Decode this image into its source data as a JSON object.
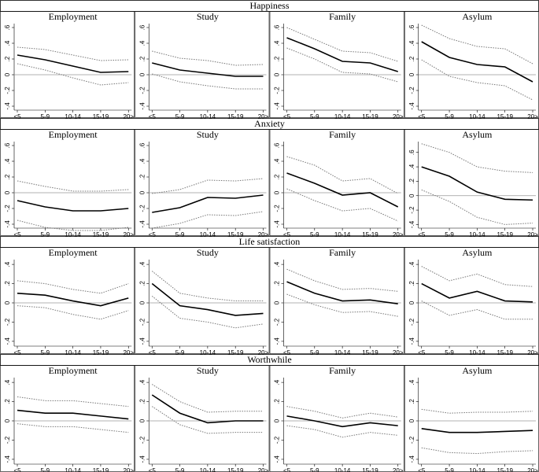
{
  "row_titles": [
    "Happiness",
    "Anxiety",
    "Life satisfaction",
    "Worthwhile"
  ],
  "chart_data": [
    {
      "type": "line",
      "title": "Employment",
      "categories": [
        "<5",
        "5-9",
        "10-14",
        "15-19",
        "20>"
      ],
      "ylim": [
        -0.45,
        0.65
      ],
      "yticks": [
        {
          "value": 0.6,
          "label": ".6"
        },
        {
          "value": 0.4,
          "label": ".4"
        },
        {
          "value": 0.2,
          "label": ".2"
        },
        0,
        {
          "value": -0.2,
          "label": "-.2"
        },
        {
          "value": -0.4,
          "label": "-.4"
        }
      ],
      "series": [
        {
          "color": "#000000",
          "dashed": false,
          "values": [
            0.25,
            0.19,
            0.11,
            0.03,
            0.04
          ]
        },
        {
          "color": "#777777",
          "dashed": true,
          "values": [
            0.35,
            0.32,
            0.25,
            0.18,
            0.19
          ]
        },
        {
          "color": "#777777",
          "dashed": true,
          "values": [
            0.14,
            0.06,
            -0.04,
            -0.13,
            -0.1
          ]
        }
      ]
    },
    {
      "type": "line",
      "title": "Study",
      "categories": [
        "<5",
        "5-9",
        "10-14",
        "15-19",
        "20>"
      ],
      "ylim": [
        -0.45,
        0.65
      ],
      "yticks": [
        {
          "value": 0.6,
          "label": ".6"
        },
        {
          "value": 0.4,
          "label": ".4"
        },
        {
          "value": 0.2,
          "label": ".2"
        },
        0,
        {
          "value": -0.2,
          "label": "-.2"
        },
        {
          "value": -0.4,
          "label": "-.4"
        }
      ],
      "series": [
        {
          "color": "#000000",
          "dashed": false,
          "values": [
            0.15,
            0.06,
            0.02,
            -0.02,
            -0.02
          ]
        },
        {
          "color": "#777777",
          "dashed": true,
          "values": [
            0.3,
            0.21,
            0.18,
            0.12,
            0.13
          ]
        },
        {
          "color": "#777777",
          "dashed": true,
          "values": [
            0.01,
            -0.09,
            -0.14,
            -0.18,
            -0.18
          ]
        }
      ]
    },
    {
      "type": "line",
      "title": "Family",
      "categories": [
        "<5",
        "5-9",
        "10-14",
        "15-19",
        "20>"
      ],
      "ylim": [
        -0.45,
        0.65
      ],
      "yticks": [
        {
          "value": 0.6,
          "label": ".6"
        },
        {
          "value": 0.4,
          "label": ".4"
        },
        {
          "value": 0.2,
          "label": ".2"
        },
        0,
        {
          "value": -0.2,
          "label": "-.2"
        },
        {
          "value": -0.4,
          "label": "-.4"
        }
      ],
      "series": [
        {
          "color": "#000000",
          "dashed": false,
          "values": [
            0.47,
            0.33,
            0.17,
            0.15,
            0.04
          ]
        },
        {
          "color": "#777777",
          "dashed": true,
          "values": [
            0.6,
            0.45,
            0.3,
            0.28,
            0.17
          ]
        },
        {
          "color": "#777777",
          "dashed": true,
          "values": [
            0.34,
            0.2,
            0.03,
            0.01,
            -0.09
          ]
        }
      ]
    },
    {
      "type": "line",
      "title": "Asylum",
      "categories": [
        "<5",
        "5-9",
        "10-14",
        "15-19",
        "20>"
      ],
      "ylim": [
        -0.45,
        0.65
      ],
      "yticks": [
        {
          "value": 0.6,
          "label": ".6"
        },
        {
          "value": 0.4,
          "label": ".4"
        },
        {
          "value": 0.2,
          "label": ".2"
        },
        0,
        {
          "value": -0.2,
          "label": "-.2"
        },
        {
          "value": -0.4,
          "label": "-.4"
        }
      ],
      "series": [
        {
          "color": "#000000",
          "dashed": false,
          "values": [
            0.42,
            0.22,
            0.13,
            0.1,
            -0.09
          ]
        },
        {
          "color": "#777777",
          "dashed": true,
          "values": [
            0.63,
            0.46,
            0.36,
            0.33,
            0.14
          ]
        },
        {
          "color": "#777777",
          "dashed": true,
          "values": [
            0.19,
            -0.02,
            -0.1,
            -0.14,
            -0.32
          ]
        }
      ]
    },
    {
      "type": "line",
      "title": "Employment",
      "categories": [
        "<5",
        "5-9",
        "10-14",
        "15-19",
        "20>"
      ],
      "ylim": [
        -0.45,
        0.65
      ],
      "yticks": [
        {
          "value": 0.6,
          "label": ".6"
        },
        {
          "value": 0.4,
          "label": ".4"
        },
        {
          "value": 0.2,
          "label": ".2"
        },
        0,
        {
          "value": -0.2,
          "label": "-.2"
        },
        {
          "value": -0.4,
          "label": "-.4"
        }
      ],
      "series": [
        {
          "color": "#000000",
          "dashed": false,
          "values": [
            -0.1,
            -0.18,
            -0.23,
            -0.23,
            -0.2
          ]
        },
        {
          "color": "#777777",
          "dashed": true,
          "values": [
            0.15,
            0.08,
            0.02,
            0.02,
            0.04
          ]
        },
        {
          "color": "#777777",
          "dashed": true,
          "values": [
            -0.35,
            -0.44,
            -0.48,
            -0.48,
            -0.44
          ]
        }
      ]
    },
    {
      "type": "line",
      "title": "Study",
      "categories": [
        "<5",
        "5-9",
        "10-14",
        "15-19",
        "20>"
      ],
      "ylim": [
        -0.45,
        0.65
      ],
      "yticks": [
        {
          "value": 0.6,
          "label": ".6"
        },
        {
          "value": 0.4,
          "label": ".4"
        },
        {
          "value": 0.2,
          "label": ".2"
        },
        0,
        {
          "value": -0.2,
          "label": "-.2"
        },
        {
          "value": -0.4,
          "label": "-.4"
        }
      ],
      "series": [
        {
          "color": "#000000",
          "dashed": false,
          "values": [
            -0.25,
            -0.19,
            -0.06,
            -0.07,
            -0.03
          ]
        },
        {
          "color": "#777777",
          "dashed": true,
          "values": [
            -0.01,
            0.04,
            0.16,
            0.15,
            0.18
          ]
        },
        {
          "color": "#777777",
          "dashed": true,
          "values": [
            -0.45,
            -0.39,
            -0.28,
            -0.29,
            -0.24
          ]
        }
      ]
    },
    {
      "type": "line",
      "title": "Family",
      "categories": [
        "<5",
        "5-9",
        "10-14",
        "15-19",
        "20>"
      ],
      "ylim": [
        -0.45,
        0.65
      ],
      "yticks": [
        {
          "value": 0.6,
          "label": ".6"
        },
        {
          "value": 0.4,
          "label": ".4"
        },
        {
          "value": 0.2,
          "label": ".2"
        },
        0,
        {
          "value": -0.2,
          "label": "-.2"
        },
        {
          "value": -0.4,
          "label": "-.4"
        }
      ],
      "series": [
        {
          "color": "#000000",
          "dashed": false,
          "values": [
            0.25,
            0.12,
            -0.03,
            0.0,
            -0.18
          ]
        },
        {
          "color": "#777777",
          "dashed": true,
          "values": [
            0.46,
            0.35,
            0.15,
            0.18,
            -0.01
          ]
        },
        {
          "color": "#777777",
          "dashed": true,
          "values": [
            0.05,
            -0.1,
            -0.23,
            -0.2,
            -0.36
          ]
        }
      ]
    },
    {
      "type": "line",
      "title": "Asylum",
      "categories": [
        "<5",
        "5-9",
        "10-14",
        "15-19",
        "20>"
      ],
      "ylim": [
        -0.45,
        0.75
      ],
      "yticks": [
        {
          "value": 0.6,
          "label": ".6"
        },
        {
          "value": 0.4,
          "label": ".4"
        },
        {
          "value": 0.2,
          "label": ".2"
        },
        0,
        {
          "value": -0.2,
          "label": "-.2"
        },
        {
          "value": -0.4,
          "label": "-.4"
        }
      ],
      "series": [
        {
          "color": "#000000",
          "dashed": false,
          "values": [
            0.4,
            0.27,
            0.05,
            -0.05,
            -0.06
          ]
        },
        {
          "color": "#777777",
          "dashed": true,
          "values": [
            0.72,
            0.6,
            0.4,
            0.34,
            0.32
          ]
        },
        {
          "color": "#777777",
          "dashed": true,
          "values": [
            0.08,
            -0.08,
            -0.3,
            -0.4,
            -0.38
          ]
        }
      ]
    },
    {
      "type": "line",
      "title": "Employment",
      "categories": [
        "<5",
        "5-9",
        "10-14",
        "15-19",
        "20>"
      ],
      "ylim": [
        -0.45,
        0.45
      ],
      "yticks": [
        {
          "value": 0.4,
          "label": ".4"
        },
        {
          "value": 0.2,
          "label": ".2"
        },
        0,
        {
          "value": -0.2,
          "label": "-.2"
        },
        {
          "value": -0.4,
          "label": "-.4"
        }
      ],
      "series": [
        {
          "color": "#000000",
          "dashed": false,
          "values": [
            0.1,
            0.08,
            0.02,
            -0.03,
            0.05
          ]
        },
        {
          "color": "#777777",
          "dashed": true,
          "values": [
            0.23,
            0.2,
            0.14,
            0.1,
            0.2
          ]
        },
        {
          "color": "#777777",
          "dashed": true,
          "values": [
            -0.03,
            -0.05,
            -0.12,
            -0.17,
            -0.08
          ]
        }
      ]
    },
    {
      "type": "line",
      "title": "Study",
      "categories": [
        "<5",
        "5-9",
        "10-14",
        "15-19",
        "20>"
      ],
      "ylim": [
        -0.45,
        0.45
      ],
      "yticks": [
        {
          "value": 0.4,
          "label": ".4"
        },
        {
          "value": 0.2,
          "label": ".2"
        },
        0,
        {
          "value": -0.2,
          "label": "-.2"
        },
        {
          "value": -0.4,
          "label": "-.4"
        }
      ],
      "series": [
        {
          "color": "#000000",
          "dashed": false,
          "values": [
            0.2,
            -0.03,
            -0.07,
            -0.13,
            -0.11
          ]
        },
        {
          "color": "#777777",
          "dashed": true,
          "values": [
            0.33,
            0.1,
            0.05,
            0.02,
            0.02
          ]
        },
        {
          "color": "#777777",
          "dashed": true,
          "values": [
            0.07,
            -0.16,
            -0.2,
            -0.26,
            -0.22
          ]
        }
      ]
    },
    {
      "type": "line",
      "title": "Family",
      "categories": [
        "<5",
        "5-9",
        "10-14",
        "15-19",
        "20>"
      ],
      "ylim": [
        -0.45,
        0.45
      ],
      "yticks": [
        {
          "value": 0.4,
          "label": ".4"
        },
        {
          "value": 0.2,
          "label": ".2"
        },
        0,
        {
          "value": -0.2,
          "label": "-.2"
        },
        {
          "value": -0.4,
          "label": "-.4"
        }
      ],
      "series": [
        {
          "color": "#000000",
          "dashed": false,
          "values": [
            0.22,
            0.1,
            0.02,
            0.03,
            -0.01
          ]
        },
        {
          "color": "#777777",
          "dashed": true,
          "values": [
            0.35,
            0.23,
            0.14,
            0.15,
            0.12
          ]
        },
        {
          "color": "#777777",
          "dashed": true,
          "values": [
            0.09,
            -0.02,
            -0.1,
            -0.09,
            -0.14
          ]
        }
      ]
    },
    {
      "type": "line",
      "title": "Asylum",
      "categories": [
        "<5",
        "5-9",
        "10-14",
        "15-19",
        "20>"
      ],
      "ylim": [
        -0.45,
        0.45
      ],
      "yticks": [
        {
          "value": 0.4,
          "label": ".4"
        },
        {
          "value": 0.2,
          "label": ".2"
        },
        0,
        {
          "value": -0.2,
          "label": "-.2"
        },
        {
          "value": -0.4,
          "label": "-.4"
        }
      ],
      "series": [
        {
          "color": "#000000",
          "dashed": false,
          "values": [
            0.2,
            0.05,
            0.12,
            0.02,
            0.01
          ]
        },
        {
          "color": "#777777",
          "dashed": true,
          "values": [
            0.38,
            0.23,
            0.3,
            0.19,
            0.17
          ]
        },
        {
          "color": "#777777",
          "dashed": true,
          "values": [
            0.02,
            -0.13,
            -0.07,
            -0.17,
            -0.17
          ]
        }
      ]
    },
    {
      "type": "line",
      "title": "Employment",
      "categories": [
        "<5",
        "5-9",
        "10-14",
        "15-19",
        "20>"
      ],
      "ylim": [
        -0.45,
        0.45
      ],
      "yticks": [
        {
          "value": 0.4,
          "label": ".4"
        },
        {
          "value": 0.2,
          "label": ".2"
        },
        0,
        {
          "value": -0.2,
          "label": "-.2"
        },
        {
          "value": -0.4,
          "label": "-.4"
        }
      ],
      "series": [
        {
          "color": "#000000",
          "dashed": false,
          "values": [
            0.11,
            0.08,
            0.08,
            0.05,
            0.02
          ]
        },
        {
          "color": "#777777",
          "dashed": true,
          "values": [
            0.25,
            0.21,
            0.21,
            0.18,
            0.15
          ]
        },
        {
          "color": "#777777",
          "dashed": true,
          "values": [
            -0.03,
            -0.06,
            -0.06,
            -0.09,
            -0.12
          ]
        }
      ]
    },
    {
      "type": "line",
      "title": "Study",
      "categories": [
        "<5",
        "5-9",
        "10-14",
        "15-19",
        "20>"
      ],
      "ylim": [
        -0.45,
        0.45
      ],
      "yticks": [
        {
          "value": 0.4,
          "label": ".4"
        },
        {
          "value": 0.2,
          "label": ".2"
        },
        0,
        {
          "value": -0.2,
          "label": "-.2"
        },
        {
          "value": -0.4,
          "label": "-.4"
        }
      ],
      "series": [
        {
          "color": "#000000",
          "dashed": false,
          "values": [
            0.27,
            0.08,
            -0.02,
            0.0,
            0.0
          ]
        },
        {
          "color": "#777777",
          "dashed": true,
          "values": [
            0.38,
            0.2,
            0.09,
            0.1,
            0.1
          ]
        },
        {
          "color": "#777777",
          "dashed": true,
          "values": [
            0.15,
            -0.04,
            -0.13,
            -0.12,
            -0.12
          ]
        }
      ]
    },
    {
      "type": "line",
      "title": "Family",
      "categories": [
        "<5",
        "5-9",
        "10-14",
        "15-19",
        "20>"
      ],
      "ylim": [
        -0.45,
        0.45
      ],
      "yticks": [
        {
          "value": 0.4,
          "label": ".4"
        },
        {
          "value": 0.2,
          "label": ".2"
        },
        0,
        {
          "value": -0.2,
          "label": "-.2"
        },
        {
          "value": -0.4,
          "label": "-.4"
        }
      ],
      "series": [
        {
          "color": "#000000",
          "dashed": false,
          "values": [
            0.05,
            0.0,
            -0.06,
            -0.02,
            -0.05
          ]
        },
        {
          "color": "#777777",
          "dashed": true,
          "values": [
            0.15,
            0.1,
            0.03,
            0.08,
            0.04
          ]
        },
        {
          "color": "#777777",
          "dashed": true,
          "values": [
            -0.05,
            -0.09,
            -0.17,
            -0.12,
            -0.15
          ]
        }
      ]
    },
    {
      "type": "line",
      "title": "Asylum",
      "categories": [
        "<5",
        "5-9",
        "10-14",
        "15-19",
        "20>"
      ],
      "ylim": [
        -0.45,
        0.45
      ],
      "yticks": [
        {
          "value": 0.4,
          "label": ".4"
        },
        {
          "value": 0.2,
          "label": ".2"
        },
        0,
        {
          "value": -0.2,
          "label": "-.2"
        },
        {
          "value": -0.4,
          "label": "-.4"
        }
      ],
      "series": [
        {
          "color": "#000000",
          "dashed": false,
          "values": [
            -0.08,
            -0.12,
            -0.12,
            -0.11,
            -0.1
          ]
        },
        {
          "color": "#777777",
          "dashed": true,
          "values": [
            0.12,
            0.08,
            0.09,
            0.09,
            0.1
          ]
        },
        {
          "color": "#777777",
          "dashed": true,
          "values": [
            -0.28,
            -0.33,
            -0.34,
            -0.32,
            -0.31
          ]
        }
      ]
    }
  ]
}
